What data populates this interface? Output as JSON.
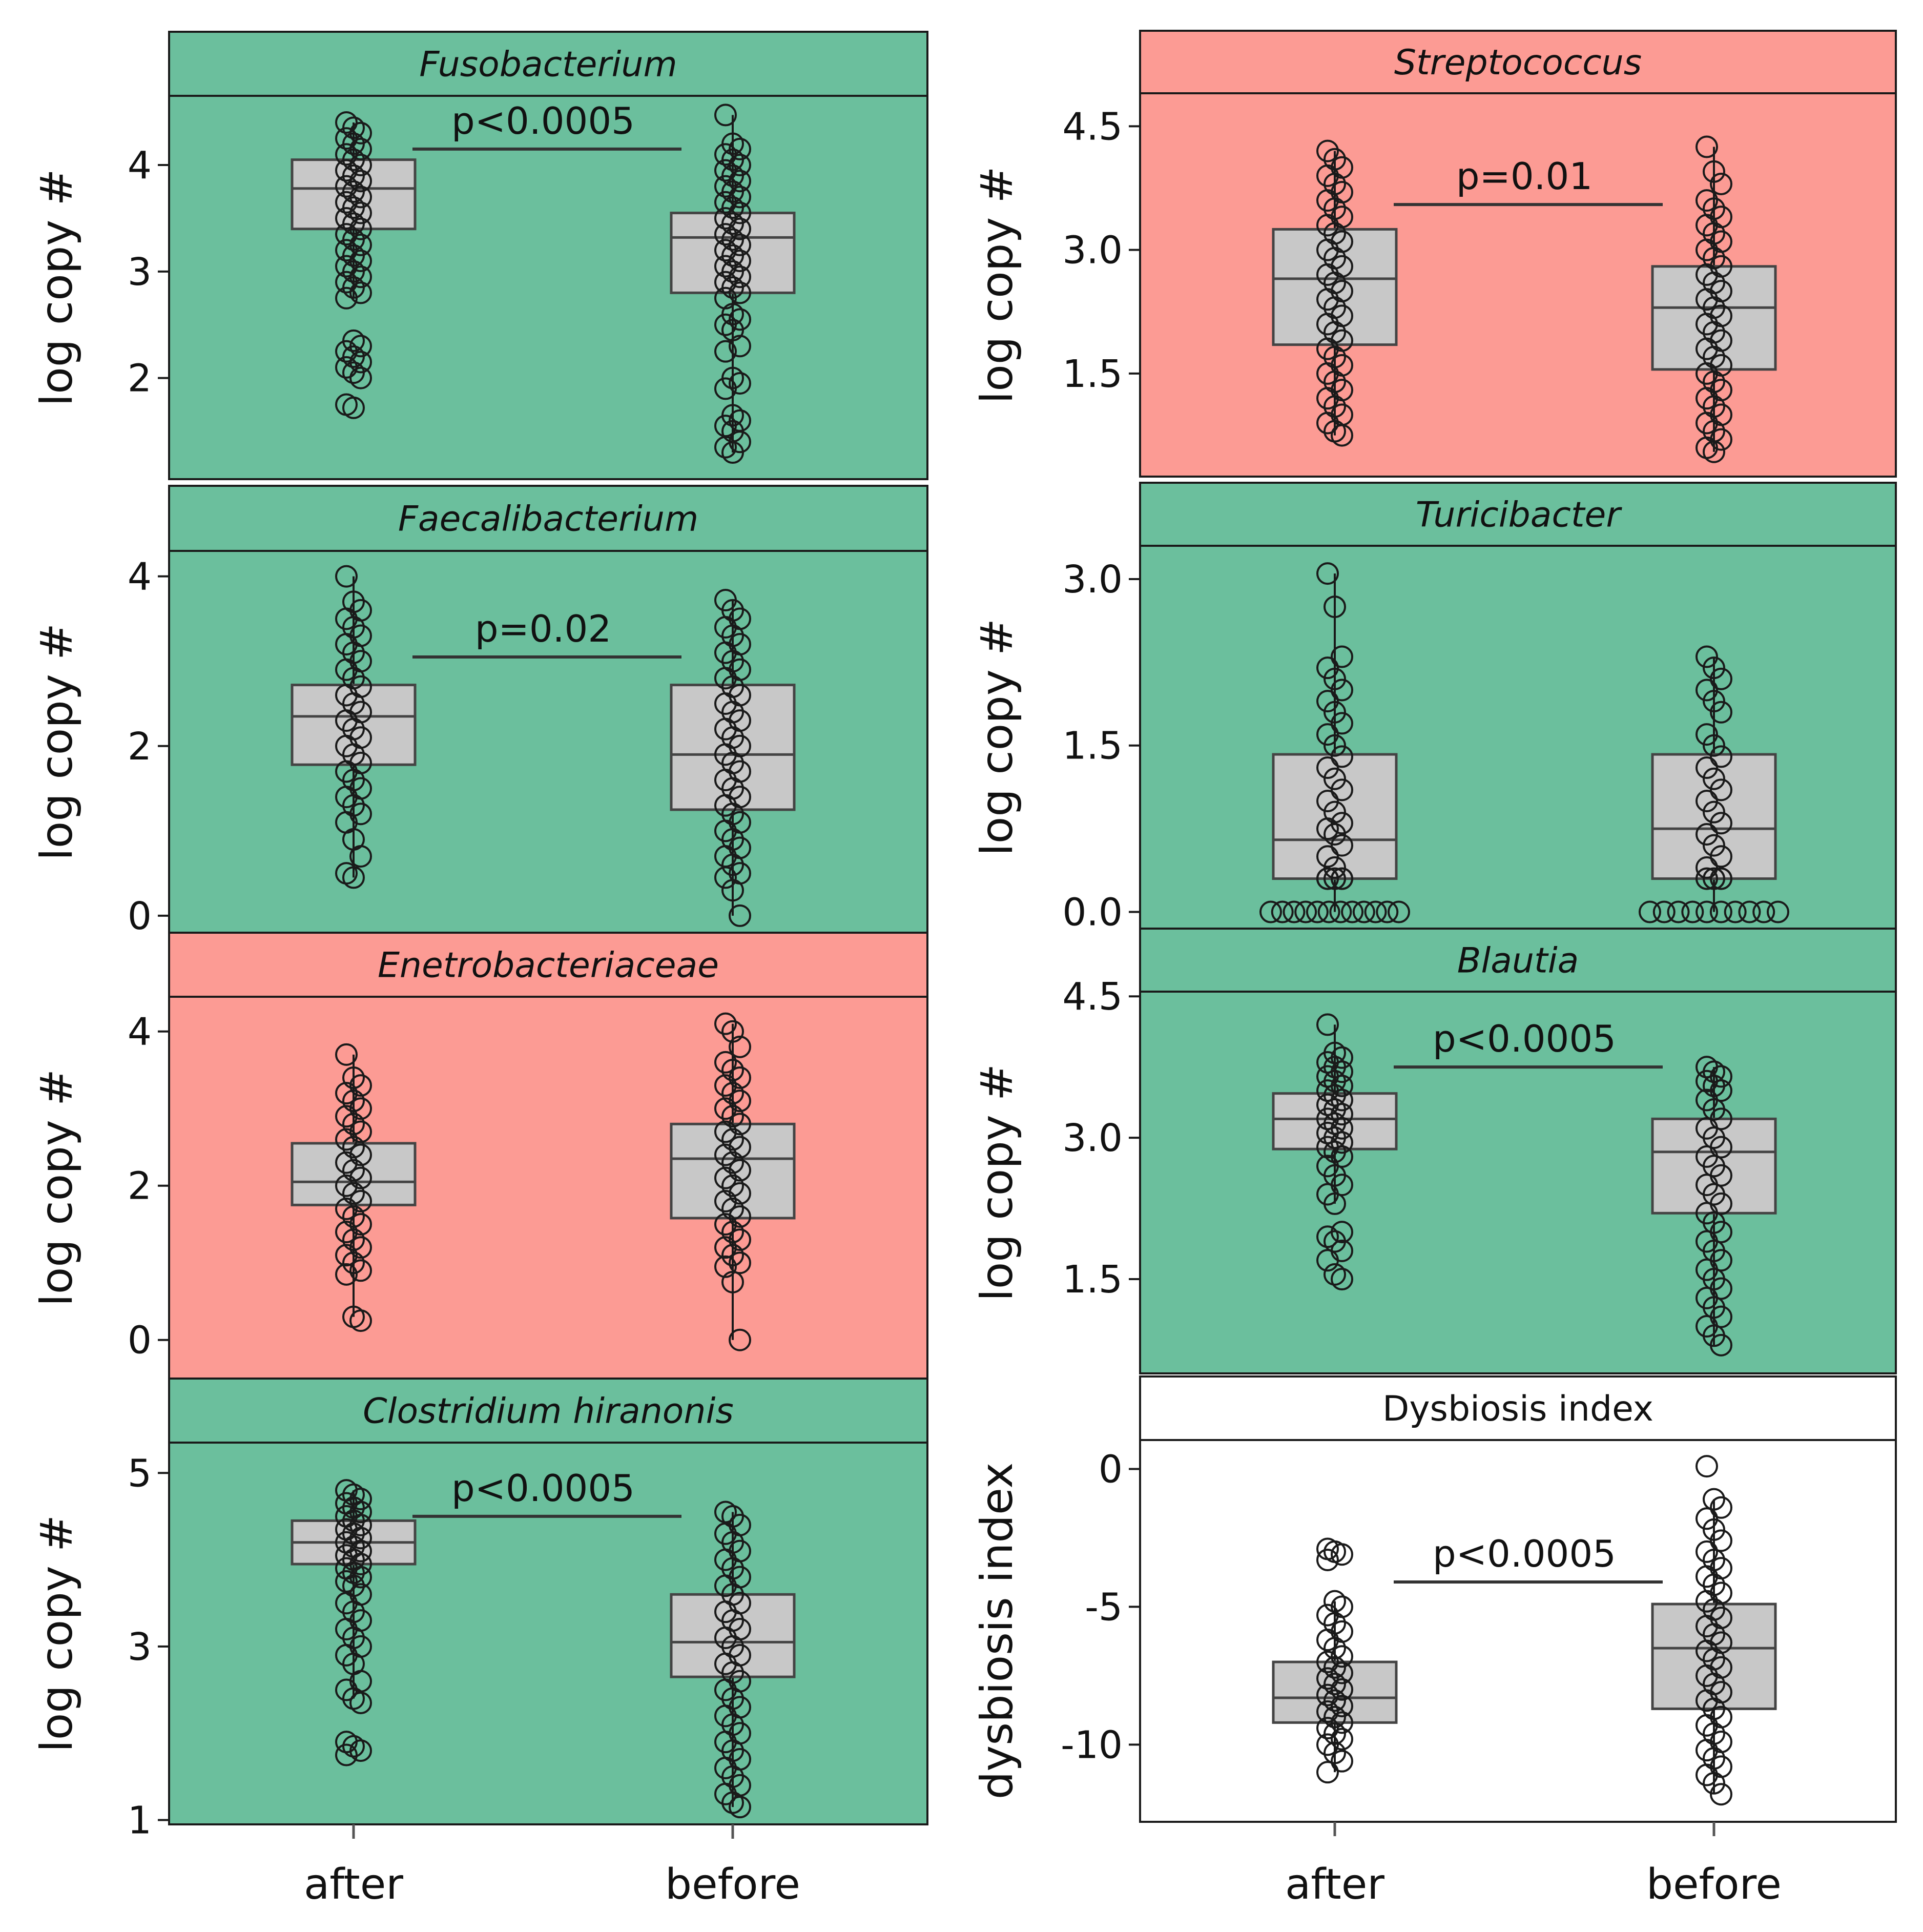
{
  "figure": {
    "x_categories": [
      "after",
      "before"
    ]
  },
  "colors": {
    "green": "#6bbf9d",
    "red": "#fc9b94",
    "white": "#ffffff",
    "box_fill": "#c8c8c8",
    "stroke": "#1a1a1a"
  },
  "chart_data": [
    {
      "type": "box",
      "title": "Fusobacterium",
      "italic": true,
      "background": "green",
      "ylabel": "log copy #",
      "ylim": [
        1.05,
        4.65
      ],
      "yticks": [
        2,
        3,
        4
      ],
      "ytick_labels": [
        "2",
        "3",
        "4"
      ],
      "categories": [
        "after",
        "before"
      ],
      "boxes": [
        {
          "category": "after",
          "q1": 3.4,
          "median": 3.78,
          "q3": 4.05,
          "whisker_low": 2.75,
          "whisker_high": 4.4,
          "points": [
            4.4,
            4.35,
            4.3,
            4.25,
            4.2,
            4.15,
            4.1,
            4.05,
            4.0,
            3.95,
            3.9,
            3.85,
            3.8,
            3.75,
            3.7,
            3.65,
            3.6,
            3.55,
            3.5,
            3.45,
            3.4,
            3.35,
            3.3,
            3.25,
            3.2,
            3.15,
            3.1,
            3.05,
            3.0,
            2.95,
            2.9,
            2.85,
            2.8,
            2.75,
            2.35,
            2.3,
            2.25,
            2.2,
            2.15,
            2.1,
            2.05,
            2.0,
            1.75,
            1.72
          ]
        },
        {
          "category": "before",
          "q1": 2.8,
          "median": 3.32,
          "q3": 3.55,
          "whisker_low": 1.3,
          "whisker_high": 4.47,
          "points": [
            4.47,
            4.2,
            4.15,
            4.1,
            4.05,
            4.0,
            3.95,
            3.9,
            3.85,
            3.8,
            3.75,
            3.7,
            3.65,
            3.6,
            3.55,
            3.5,
            3.45,
            3.4,
            3.35,
            3.3,
            3.25,
            3.2,
            3.15,
            3.1,
            3.05,
            3.0,
            2.95,
            2.9,
            2.85,
            2.8,
            2.75,
            2.6,
            2.55,
            2.5,
            2.45,
            2.3,
            2.25,
            2.0,
            1.95,
            1.9,
            1.65,
            1.6,
            1.55,
            1.5,
            1.4,
            1.35,
            1.3
          ]
        }
      ],
      "annotation": {
        "text": "p<0.0005",
        "y": 4.15
      }
    },
    {
      "type": "box",
      "title": "Faecalibacterium",
      "italic": true,
      "background": "green",
      "ylabel": "log copy #",
      "ylim": [
        -0.2,
        4.3
      ],
      "yticks": [
        0,
        2,
        4
      ],
      "ytick_labels": [
        "0",
        "2",
        "4"
      ],
      "categories": [
        "after",
        "before"
      ],
      "boxes": [
        {
          "category": "after",
          "q1": 1.78,
          "median": 2.35,
          "q3": 2.72,
          "whisker_low": 0.45,
          "whisker_high": 4.0,
          "points": [
            4.0,
            3.7,
            3.6,
            3.5,
            3.4,
            3.3,
            3.2,
            3.1,
            3.0,
            2.9,
            2.8,
            2.7,
            2.6,
            2.5,
            2.4,
            2.3,
            2.2,
            2.1,
            2.0,
            1.9,
            1.8,
            1.7,
            1.6,
            1.5,
            1.4,
            1.3,
            1.2,
            1.1,
            0.9,
            0.7,
            0.5,
            0.45
          ]
        },
        {
          "category": "before",
          "q1": 1.25,
          "median": 1.9,
          "q3": 2.72,
          "whisker_low": 0.0,
          "whisker_high": 3.72,
          "points": [
            3.72,
            3.6,
            3.5,
            3.4,
            3.3,
            3.2,
            3.1,
            3.0,
            2.9,
            2.8,
            2.7,
            2.6,
            2.5,
            2.4,
            2.3,
            2.2,
            2.1,
            2.0,
            1.9,
            1.8,
            1.7,
            1.6,
            1.5,
            1.4,
            1.3,
            1.2,
            1.1,
            1.0,
            0.9,
            0.8,
            0.7,
            0.6,
            0.5,
            0.45,
            0.3,
            0.0
          ]
        }
      ],
      "annotation": {
        "text": "p=0.02",
        "y": 3.05
      }
    },
    {
      "type": "box",
      "title": "Enetrobacteriaceae",
      "italic": true,
      "background": "red",
      "ylabel": "log copy #",
      "ylim": [
        -0.5,
        4.45
      ],
      "yticks": [
        0,
        2,
        4
      ],
      "ytick_labels": [
        "0",
        "2",
        "4"
      ],
      "categories": [
        "after",
        "before"
      ],
      "boxes": [
        {
          "category": "after",
          "q1": 1.75,
          "median": 2.05,
          "q3": 2.55,
          "whisker_low": 0.3,
          "whisker_high": 3.7,
          "points": [
            3.7,
            3.4,
            3.3,
            3.2,
            3.1,
            3.0,
            2.9,
            2.8,
            2.7,
            2.6,
            2.5,
            2.4,
            2.3,
            2.2,
            2.1,
            2.0,
            1.9,
            1.8,
            1.7,
            1.6,
            1.5,
            1.4,
            1.3,
            1.2,
            1.1,
            1.0,
            0.9,
            0.85,
            0.3,
            0.25
          ]
        },
        {
          "category": "before",
          "q1": 1.58,
          "median": 2.35,
          "q3": 2.8,
          "whisker_low": 0.0,
          "whisker_high": 4.1,
          "points": [
            4.1,
            4.0,
            3.8,
            3.6,
            3.5,
            3.4,
            3.3,
            3.2,
            3.1,
            3.0,
            2.9,
            2.8,
            2.7,
            2.6,
            2.5,
            2.4,
            2.3,
            2.2,
            2.1,
            2.0,
            1.9,
            1.8,
            1.7,
            1.6,
            1.5,
            1.4,
            1.3,
            1.2,
            1.1,
            1.0,
            0.95,
            0.75,
            0.0
          ]
        }
      ],
      "annotation": null
    },
    {
      "type": "box",
      "title": "Clostridium hiranonis",
      "italic": true,
      "background": "green",
      "ylabel": "log copy #",
      "ylim": [
        0.95,
        5.35
      ],
      "yticks": [
        1,
        3,
        5
      ],
      "ytick_labels": [
        "1",
        "3",
        "5"
      ],
      "categories": [
        "after",
        "before"
      ],
      "boxes": [
        {
          "category": "after",
          "q1": 3.95,
          "median": 4.2,
          "q3": 4.45,
          "whisker_low": 2.4,
          "whisker_high": 4.8,
          "points": [
            4.8,
            4.75,
            4.7,
            4.65,
            4.6,
            4.55,
            4.5,
            4.45,
            4.4,
            4.35,
            4.3,
            4.25,
            4.2,
            4.15,
            4.1,
            4.05,
            4.0,
            3.95,
            3.9,
            3.85,
            3.8,
            3.75,
            3.7,
            3.6,
            3.5,
            3.4,
            3.3,
            3.2,
            3.1,
            3.0,
            2.9,
            2.8,
            2.6,
            2.5,
            2.4,
            2.35,
            1.9,
            1.85,
            1.8,
            1.75
          ]
        },
        {
          "category": "before",
          "q1": 2.65,
          "median": 3.05,
          "q3": 3.6,
          "whisker_low": 1.15,
          "whisker_high": 4.55,
          "points": [
            4.55,
            4.5,
            4.4,
            4.3,
            4.2,
            4.1,
            4.0,
            3.9,
            3.8,
            3.7,
            3.6,
            3.5,
            3.4,
            3.3,
            3.2,
            3.1,
            3.0,
            2.9,
            2.8,
            2.7,
            2.6,
            2.5,
            2.4,
            2.3,
            2.2,
            2.1,
            2.0,
            1.9,
            1.8,
            1.7,
            1.6,
            1.5,
            1.4,
            1.3,
            1.2,
            1.15
          ]
        }
      ],
      "annotation": {
        "text": "p<0.0005",
        "y": 4.5
      }
    },
    {
      "type": "box",
      "title": "Streptococcus",
      "italic": true,
      "background": "red",
      "ylabel": "log copy #",
      "ylim": [
        0.25,
        4.9
      ],
      "yticks": [
        1.5,
        3.0,
        4.5
      ],
      "ytick_labels": [
        "1.5",
        "3.0",
        "4.5"
      ],
      "categories": [
        "after",
        "before"
      ],
      "boxes": [
        {
          "category": "after",
          "q1": 1.85,
          "median": 2.65,
          "q3": 3.25,
          "whisker_low": 0.75,
          "whisker_high": 4.2,
          "points": [
            4.2,
            4.1,
            4.0,
            3.9,
            3.8,
            3.7,
            3.6,
            3.5,
            3.4,
            3.3,
            3.2,
            3.1,
            3.0,
            2.9,
            2.8,
            2.7,
            2.6,
            2.5,
            2.4,
            2.3,
            2.2,
            2.1,
            2.0,
            1.9,
            1.8,
            1.7,
            1.6,
            1.5,
            1.4,
            1.3,
            1.2,
            1.1,
            1.0,
            0.9,
            0.8,
            0.75
          ]
        },
        {
          "category": "before",
          "q1": 1.55,
          "median": 2.3,
          "q3": 2.8,
          "whisker_low": 0.55,
          "whisker_high": 4.25,
          "points": [
            4.25,
            3.95,
            3.8,
            3.6,
            3.5,
            3.4,
            3.3,
            3.2,
            3.1,
            3.0,
            2.9,
            2.8,
            2.7,
            2.6,
            2.5,
            2.4,
            2.3,
            2.2,
            2.1,
            2.0,
            1.9,
            1.8,
            1.7,
            1.6,
            1.5,
            1.4,
            1.3,
            1.2,
            1.1,
            1.0,
            0.9,
            0.8,
            0.7,
            0.6,
            0.55
          ]
        }
      ],
      "annotation": {
        "text": "p=0.01",
        "y": 3.55
      }
    },
    {
      "type": "box",
      "title": "Turicibacter",
      "italic": true,
      "background": "green",
      "ylabel": "log copy #",
      "ylim": [
        -0.15,
        3.3
      ],
      "yticks": [
        0.0,
        1.5,
        3.0
      ],
      "ytick_labels": [
        "0.0",
        "1.5",
        "3.0"
      ],
      "categories": [
        "after",
        "before"
      ],
      "boxes": [
        {
          "category": "after",
          "q1": 0.3,
          "median": 0.65,
          "q3": 1.42,
          "whisker_low": 0.0,
          "whisker_high": 3.05,
          "points": [
            3.05,
            2.75,
            2.3,
            2.2,
            2.1,
            2.0,
            1.9,
            1.8,
            1.7,
            1.6,
            1.5,
            1.4,
            1.3,
            1.2,
            1.1,
            1.0,
            0.9,
            0.8,
            0.75,
            0.7,
            0.6,
            0.5,
            0.4,
            0.3,
            0.3,
            0.3,
            0.3,
            0.3,
            0.3,
            0.3,
            0.3
          ],
          "zero_points": 12
        },
        {
          "category": "before",
          "q1": 0.3,
          "median": 0.75,
          "q3": 1.42,
          "whisker_low": 0.0,
          "whisker_high": 2.3,
          "points": [
            2.3,
            2.2,
            2.1,
            2.0,
            1.9,
            1.8,
            1.6,
            1.5,
            1.4,
            1.3,
            1.2,
            1.1,
            1.0,
            0.9,
            0.8,
            0.7,
            0.6,
            0.5,
            0.4,
            0.3,
            0.3,
            0.3,
            0.3,
            0.3,
            0.3
          ],
          "zero_points": 10
        }
      ],
      "annotation": null
    },
    {
      "type": "box",
      "title": "Blautia",
      "italic": true,
      "background": "green",
      "ylabel": "log copy #",
      "ylim": [
        0.5,
        4.55
      ],
      "yticks": [
        1.5,
        3.0,
        4.5
      ],
      "ytick_labels": [
        "1.5",
        "3.0",
        "4.5"
      ],
      "categories": [
        "after",
        "before"
      ],
      "boxes": [
        {
          "category": "after",
          "q1": 2.88,
          "median": 3.2,
          "q3": 3.47,
          "whisker_low": 2.3,
          "whisker_high": 4.2,
          "points": [
            4.2,
            3.9,
            3.85,
            3.8,
            3.75,
            3.7,
            3.65,
            3.6,
            3.55,
            3.5,
            3.45,
            3.4,
            3.35,
            3.3,
            3.25,
            3.2,
            3.15,
            3.1,
            3.05,
            3.0,
            2.95,
            2.9,
            2.85,
            2.8,
            2.7,
            2.6,
            2.5,
            2.4,
            2.3,
            2.0,
            1.95,
            1.9,
            1.8,
            1.7,
            1.55,
            1.5
          ]
        },
        {
          "category": "before",
          "q1": 2.2,
          "median": 2.85,
          "q3": 3.2,
          "whisker_low": 0.8,
          "whisker_high": 3.75,
          "points": [
            3.75,
            3.7,
            3.65,
            3.6,
            3.55,
            3.5,
            3.4,
            3.3,
            3.2,
            3.1,
            3.0,
            2.9,
            2.8,
            2.7,
            2.6,
            2.5,
            2.4,
            2.3,
            2.2,
            2.1,
            2.0,
            1.9,
            1.8,
            1.7,
            1.6,
            1.5,
            1.4,
            1.3,
            1.2,
            1.1,
            1.0,
            0.9,
            0.8
          ]
        }
      ],
      "annotation": {
        "text": "p<0.0005",
        "y": 3.75
      }
    },
    {
      "type": "box",
      "title": "Dysbiosis index",
      "italic": false,
      "background": "white",
      "ylabel": "dysbiosis index",
      "ylim": [
        -12.8,
        1.05
      ],
      "yticks": [
        -10,
        -5,
        0
      ],
      "ytick_labels": [
        "-10",
        "-5",
        "0"
      ],
      "categories": [
        "after",
        "before"
      ],
      "boxes": [
        {
          "category": "after",
          "q1": -9.2,
          "median": -8.3,
          "q3": -7.0,
          "whisker_low": -11.0,
          "whisker_high": -4.8,
          "points": [
            -2.9,
            -3.0,
            -3.1,
            -3.3,
            -4.8,
            -5.0,
            -5.3,
            -5.6,
            -5.9,
            -6.2,
            -6.5,
            -6.8,
            -7.0,
            -7.2,
            -7.4,
            -7.6,
            -7.8,
            -8.0,
            -8.2,
            -8.4,
            -8.6,
            -8.8,
            -9.0,
            -9.2,
            -9.4,
            -9.6,
            -9.8,
            -10.0,
            -10.3,
            -10.6,
            -11.0
          ]
        },
        {
          "category": "before",
          "q1": -8.7,
          "median": -6.5,
          "q3": -4.9,
          "whisker_low": -11.8,
          "whisker_high": -1.1,
          "points": [
            0.1,
            -1.1,
            -1.4,
            -1.8,
            -2.2,
            -2.6,
            -3.0,
            -3.3,
            -3.6,
            -3.9,
            -4.2,
            -4.5,
            -4.8,
            -5.1,
            -5.4,
            -5.7,
            -6.0,
            -6.3,
            -6.6,
            -6.9,
            -7.2,
            -7.5,
            -7.8,
            -8.1,
            -8.4,
            -8.7,
            -9.0,
            -9.3,
            -9.6,
            -9.9,
            -10.2,
            -10.5,
            -10.8,
            -11.1,
            -11.4,
            -11.8
          ]
        }
      ],
      "annotation": {
        "text": "p<0.0005",
        "y": -4.1
      }
    }
  ]
}
